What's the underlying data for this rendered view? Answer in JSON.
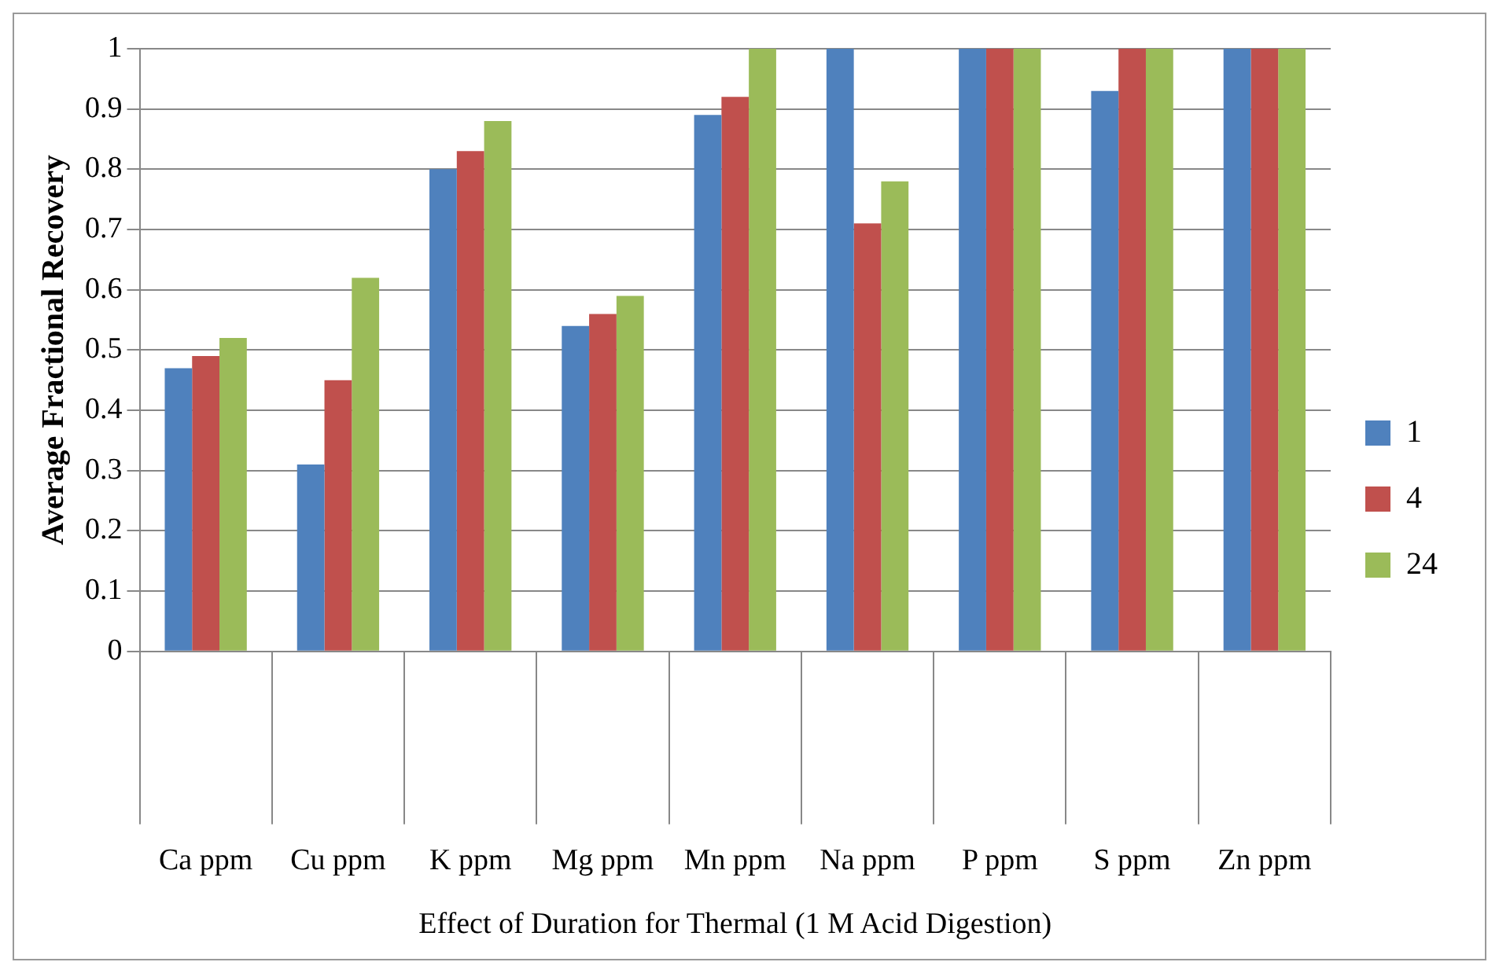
{
  "chart_data": {
    "type": "bar",
    "xlabel": "Effect of Duration for Thermal (1 M Acid Digestion)",
    "ylabel": "Average Fractional Recovery",
    "categories": [
      "Ca ppm",
      "Cu ppm",
      "K ppm",
      "Mg ppm",
      "Mn ppm",
      "Na ppm",
      "P ppm",
      "S ppm",
      "Zn ppm"
    ],
    "series": [
      {
        "name": "1",
        "color": "#4f81bd",
        "values": [
          0.47,
          0.31,
          0.8,
          0.54,
          0.89,
          1,
          1,
          0.93,
          1
        ]
      },
      {
        "name": "4",
        "color": "#c0504d",
        "values": [
          0.49,
          0.45,
          0.83,
          0.56,
          0.92,
          0.71,
          1,
          1,
          1
        ]
      },
      {
        "name": "24",
        "color": "#9bbb59",
        "values": [
          0.52,
          0.62,
          0.88,
          0.59,
          1,
          0.78,
          1,
          1,
          1
        ]
      }
    ],
    "ylim": [
      0,
      1
    ],
    "yticks": [
      0,
      0.1,
      0.2,
      0.3,
      0.4,
      0.5,
      0.6,
      0.7,
      0.8,
      0.9,
      1
    ],
    "grid": "y",
    "legend": "right"
  }
}
